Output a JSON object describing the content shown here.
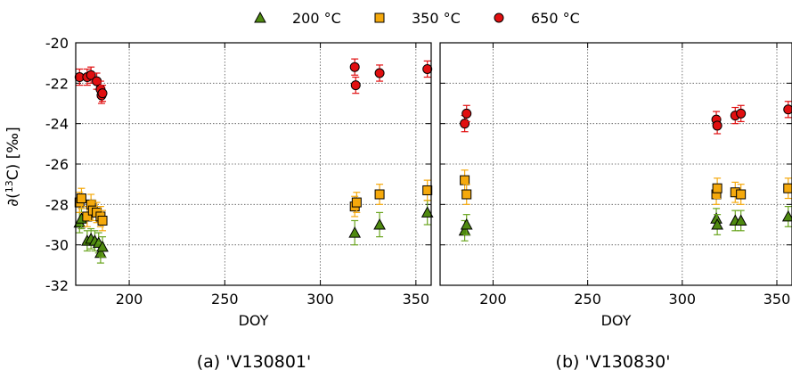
{
  "legend": [
    {
      "label": "200 °C",
      "marker": "triangle",
      "fill": "#4f8a10",
      "err": "#6aa51f"
    },
    {
      "label": "350 °C",
      "marker": "square",
      "fill": "#f5a90c",
      "err": "#f5a90c"
    },
    {
      "label": "650 °C",
      "marker": "circle",
      "fill": "#e10f10",
      "err": "#e10f10"
    }
  ],
  "ylabel_main": "∂(",
  "ylabel_sup": "13",
  "ylabel_tail": "C) [‰]",
  "chart_data": [
    {
      "type": "scatter",
      "caption": "(a) 'V130801'",
      "xlabel": "DOY",
      "xlim": [
        172,
        358
      ],
      "ylim": [
        -32,
        -20
      ],
      "xticks": [
        200,
        250,
        300,
        350
      ],
      "yticks": [
        -32,
        -30,
        -28,
        -26,
        -24,
        -22,
        -20
      ],
      "grid": true,
      "series": [
        {
          "name": "200 °C",
          "points": [
            {
              "x": 174,
              "y": -28.9,
              "e": 0.5
            },
            {
              "x": 175,
              "y": -28.7,
              "e": 0.5
            },
            {
              "x": 178,
              "y": -29.8,
              "e": 0.5
            },
            {
              "x": 180,
              "y": -29.7,
              "e": 0.5
            },
            {
              "x": 182,
              "y": -29.8,
              "e": 0.5
            },
            {
              "x": 184,
              "y": -29.9,
              "e": 0.5
            },
            {
              "x": 185,
              "y": -30.4,
              "e": 0.5
            },
            {
              "x": 186,
              "y": -30.1,
              "e": 0.5
            },
            {
              "x": 318,
              "y": -29.4,
              "e": 0.6
            },
            {
              "x": 331,
              "y": -29.0,
              "e": 0.6
            },
            {
              "x": 356,
              "y": -28.4,
              "e": 0.6
            }
          ]
        },
        {
          "name": "350 °C",
          "points": [
            {
              "x": 174,
              "y": -27.9,
              "e": 0.5
            },
            {
              "x": 175,
              "y": -27.7,
              "e": 0.5
            },
            {
              "x": 178,
              "y": -28.6,
              "e": 0.5
            },
            {
              "x": 180,
              "y": -28.0,
              "e": 0.5
            },
            {
              "x": 181,
              "y": -28.3,
              "e": 0.5
            },
            {
              "x": 183,
              "y": -28.4,
              "e": 0.5
            },
            {
              "x": 185,
              "y": -28.6,
              "e": 0.5
            },
            {
              "x": 186,
              "y": -28.8,
              "e": 0.5
            },
            {
              "x": 318,
              "y": -28.1,
              "e": 0.5
            },
            {
              "x": 319,
              "y": -27.9,
              "e": 0.5
            },
            {
              "x": 331,
              "y": -27.5,
              "e": 0.5
            },
            {
              "x": 356,
              "y": -27.3,
              "e": 0.5
            }
          ]
        },
        {
          "name": "650 °C",
          "points": [
            {
              "x": 174,
              "y": -21.7,
              "e": 0.4
            },
            {
              "x": 178,
              "y": -21.7,
              "e": 0.4
            },
            {
              "x": 180,
              "y": -21.6,
              "e": 0.4
            },
            {
              "x": 183,
              "y": -21.9,
              "e": 0.4
            },
            {
              "x": 185,
              "y": -22.3,
              "e": 0.4
            },
            {
              "x": 185.5,
              "y": -22.6,
              "e": 0.4
            },
            {
              "x": 186,
              "y": -22.5,
              "e": 0.4
            },
            {
              "x": 318,
              "y": -21.2,
              "e": 0.4
            },
            {
              "x": 318.5,
              "y": -22.1,
              "e": 0.4
            },
            {
              "x": 331,
              "y": -21.5,
              "e": 0.4
            },
            {
              "x": 356,
              "y": -21.3,
              "e": 0.4
            }
          ]
        }
      ]
    },
    {
      "type": "scatter",
      "caption": "(b) 'V130830'",
      "xlabel": "DOY",
      "xlim": [
        172,
        358
      ],
      "ylim": [
        -32,
        -20
      ],
      "xticks": [
        200,
        250,
        300,
        350
      ],
      "yticks": [
        -32,
        -30,
        -28,
        -26,
        -24,
        -22,
        -20
      ],
      "grid": true,
      "series": [
        {
          "name": "200 °C",
          "points": [
            {
              "x": 185,
              "y": -29.3,
              "e": 0.5
            },
            {
              "x": 186,
              "y": -29.0,
              "e": 0.5
            },
            {
              "x": 318,
              "y": -28.7,
              "e": 0.5
            },
            {
              "x": 318.5,
              "y": -29.0,
              "e": 0.5
            },
            {
              "x": 328,
              "y": -28.8,
              "e": 0.5
            },
            {
              "x": 331,
              "y": -28.8,
              "e": 0.5
            },
            {
              "x": 356,
              "y": -28.6,
              "e": 0.5
            }
          ]
        },
        {
          "name": "350 °C",
          "points": [
            {
              "x": 185,
              "y": -26.8,
              "e": 0.5
            },
            {
              "x": 186,
              "y": -27.5,
              "e": 0.5
            },
            {
              "x": 318,
              "y": -27.5,
              "e": 0.5
            },
            {
              "x": 318.5,
              "y": -27.2,
              "e": 0.5
            },
            {
              "x": 328,
              "y": -27.4,
              "e": 0.5
            },
            {
              "x": 331,
              "y": -27.5,
              "e": 0.5
            },
            {
              "x": 356,
              "y": -27.2,
              "e": 0.5
            }
          ]
        },
        {
          "name": "650 °C",
          "points": [
            {
              "x": 185,
              "y": -24.0,
              "e": 0.4
            },
            {
              "x": 186,
              "y": -23.5,
              "e": 0.4
            },
            {
              "x": 318,
              "y": -23.8,
              "e": 0.4
            },
            {
              "x": 318.5,
              "y": -24.1,
              "e": 0.4
            },
            {
              "x": 328,
              "y": -23.6,
              "e": 0.4
            },
            {
              "x": 331,
              "y": -23.5,
              "e": 0.4
            },
            {
              "x": 356,
              "y": -23.3,
              "e": 0.4
            }
          ]
        }
      ]
    }
  ]
}
